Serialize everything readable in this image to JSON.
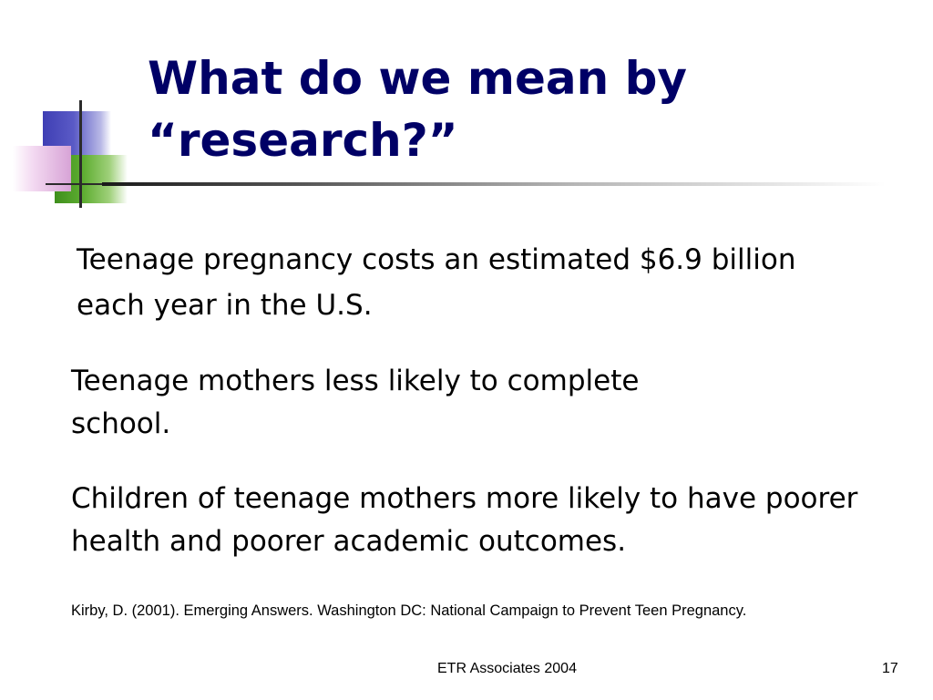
{
  "slide": {
    "title": "What do we mean by “research?”",
    "paragraphs": [
      "Teenage pregnancy costs an estimated $6.9 billion each year in the U.S.",
      "Teenage mothers less likely to complete school.",
      "Children of teenage mothers more likely to have poorer health and poorer academic outcomes."
    ],
    "citation": "Kirby, D. (2001).  Emerging Answers. Washington DC:  National Campaign to Prevent Teen Pregnancy.",
    "footer": {
      "organization": "ETR Associates 2004",
      "page_number": "17"
    }
  },
  "colors": {
    "title": "#000066",
    "accent_blue": "#3f3fb4",
    "accent_green": "#5fae32",
    "accent_pink": "#d7a3d6"
  }
}
